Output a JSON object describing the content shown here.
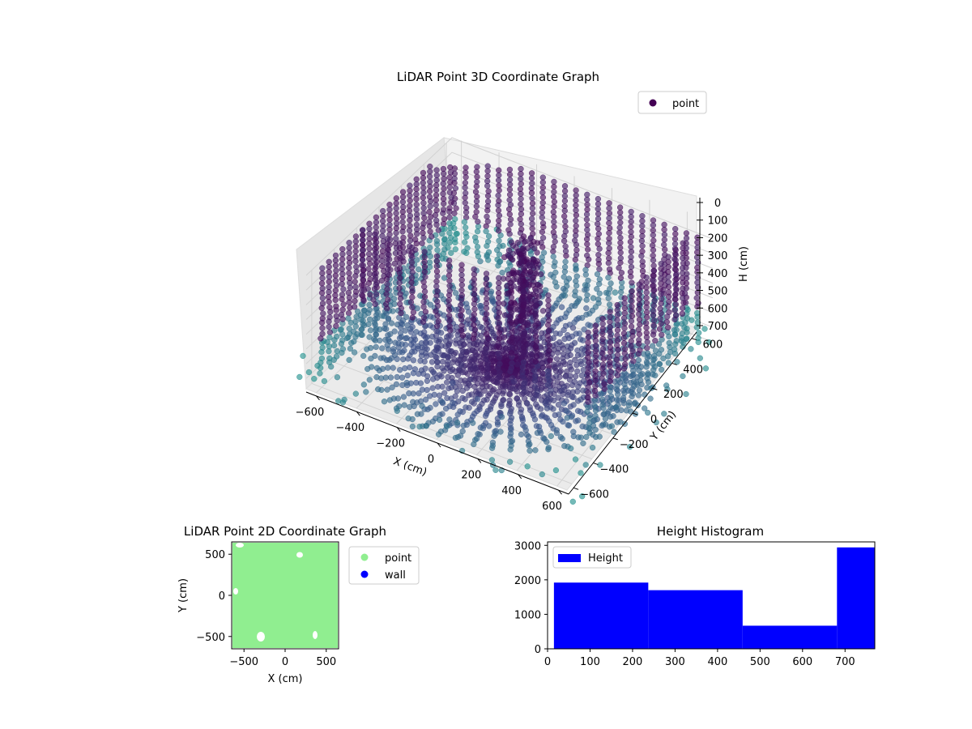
{
  "chart_data": [
    {
      "type": "scatter",
      "projection": "3d",
      "title": "LiDAR Point 3D Coordinate Graph",
      "xlabel": "X (cm)",
      "ylabel": "Y (cm)",
      "zlabel": "H (cm)",
      "xticks": [
        "−600",
        "−400",
        "−200",
        "0",
        "200",
        "400",
        "600"
      ],
      "yticks": [
        "−600",
        "−400",
        "−200",
        "0",
        "200",
        "400",
        "600"
      ],
      "zticks": [
        "0",
        "100",
        "200",
        "300",
        "400",
        "500",
        "600",
        "700"
      ],
      "xlim": [
        -650,
        650
      ],
      "ylim": [
        -650,
        650
      ],
      "zlim": [
        0,
        770
      ],
      "z_inverted": true,
      "colormap": "viridis",
      "legend": [
        {
          "name": "point",
          "color": "#440154"
        }
      ],
      "legend_position": "upper right",
      "grid": true
    },
    {
      "type": "scatter",
      "title": "LiDAR Point 2D Coordinate Graph",
      "xlabel": "X (cm)",
      "ylabel": "Y (cm)",
      "xticks": [
        "−500",
        "0",
        "500"
      ],
      "yticks": [
        "500",
        "0",
        "−500"
      ],
      "xlim": [
        -650,
        650
      ],
      "ylim": [
        -650,
        650
      ],
      "series": [
        {
          "name": "point",
          "color": "#90ee90"
        },
        {
          "name": "wall",
          "color": "#0000ff"
        }
      ],
      "legend_position": "outside right"
    },
    {
      "type": "bar",
      "title": "Height Histogram",
      "series_name": "Height",
      "color": "#0000ff",
      "bins": [
        {
          "start": 15,
          "end": 237,
          "count": 1920
        },
        {
          "start": 237,
          "end": 459,
          "count": 1700
        },
        {
          "start": 459,
          "end": 681,
          "count": 670
        },
        {
          "start": 681,
          "end": 770,
          "count": 2940
        }
      ],
      "xticks": [
        "0",
        "100",
        "200",
        "300",
        "400",
        "500",
        "600",
        "700"
      ],
      "yticks": [
        "0",
        "1000",
        "2000",
        "3000"
      ],
      "xlim": [
        0,
        770
      ],
      "ylim": [
        0,
        3100
      ],
      "legend_position": "upper left"
    }
  ]
}
